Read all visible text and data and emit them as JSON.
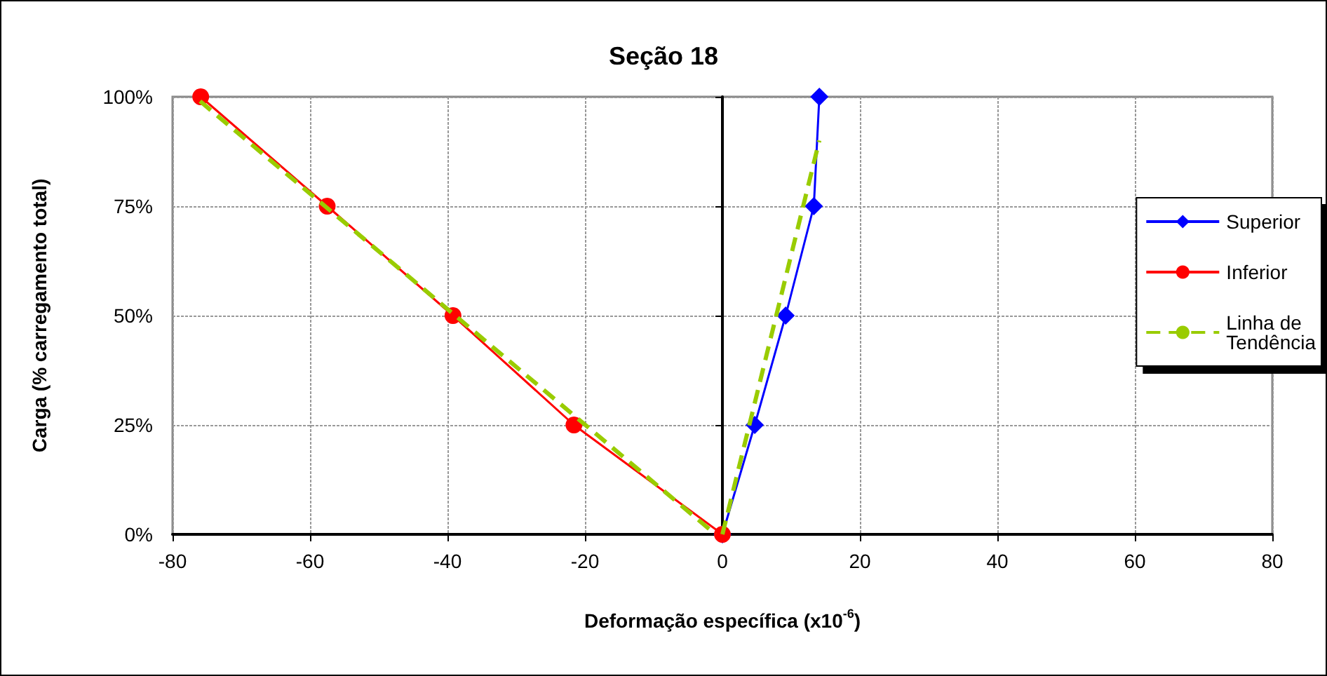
{
  "chart_data": {
    "type": "line",
    "title": "Seção 18",
    "xlabel": "Deformação específica (x10$^{-6}$)",
    "ylabel": "Carga (% carregamento total)",
    "xlim": [
      -80,
      80
    ],
    "xticks": [
      -80,
      -60,
      -40,
      -20,
      0,
      20,
      40,
      60,
      80
    ],
    "ylim": [
      0,
      100
    ],
    "yticks": [
      {
        "value": 0,
        "label": "0%"
      },
      {
        "value": 25,
        "label": "25%"
      },
      {
        "value": 50,
        "label": "50%"
      },
      {
        "value": 75,
        "label": "75%"
      },
      {
        "value": 100,
        "label": "100%"
      }
    ],
    "grid": true,
    "legend": "right",
    "series": [
      {
        "name": "Superior",
        "color": "#0000ff",
        "marker": "diamond",
        "line_style": "solid",
        "x": [
          0,
          4.7,
          9.2,
          13.3,
          14.1
        ],
        "values": [
          0,
          25,
          50,
          75,
          100
        ]
      },
      {
        "name": "Inferior",
        "color": "#ff0000",
        "marker": "circle",
        "line_style": "solid",
        "x": [
          -75.9,
          -57.5,
          -39.2,
          -21.6,
          0
        ],
        "values": [
          100,
          75,
          50,
          25,
          0
        ]
      },
      {
        "name": "Linha de Tendência",
        "color": "#99cc00",
        "marker": "none",
        "line_style": "dashed",
        "x": [
          -76,
          -1,
          null,
          0,
          14.1
        ],
        "values": [
          99,
          0,
          null,
          0,
          90
        ]
      }
    ]
  }
}
